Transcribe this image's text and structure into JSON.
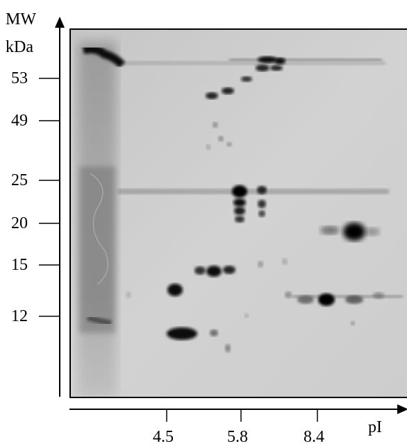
{
  "y_axis": {
    "title_line1": "MW",
    "title_line2": "kDa",
    "ticks": [
      "53",
      "49",
      "25",
      "20",
      "15",
      "12"
    ]
  },
  "x_axis": {
    "title": "pI",
    "ticks": [
      "4.5",
      "5.8",
      "8.4"
    ]
  },
  "colors": {
    "gel_background": "#cfcfcf",
    "spot": "#0a0a0a",
    "axis": "#000000"
  }
}
